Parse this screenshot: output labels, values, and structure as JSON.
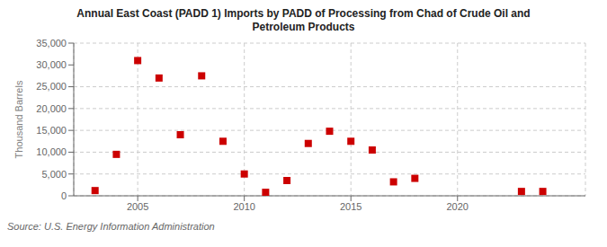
{
  "chart_data": {
    "type": "scatter",
    "title": "Annual East Coast (PADD 1) Imports by PADD of Processing from Chad of Crude Oil and\nPetroleum Products",
    "ylabel": "Thousand Barrels",
    "annotations": [
      "Source: U.S. Energy Information Administration"
    ],
    "x": [
      2003,
      2004,
      2005,
      2006,
      2007,
      2008,
      2009,
      2010,
      2011,
      2012,
      2013,
      2014,
      2015,
      2016,
      2017,
      2018,
      2023,
      2024
    ],
    "values": [
      1200,
      9500,
      31000,
      27000,
      14000,
      27500,
      12500,
      5000,
      800,
      3500,
      12000,
      14800,
      12500,
      10500,
      3200,
      4000,
      1000,
      1000
    ],
    "color": "#cc0000",
    "marker": "square",
    "xlim": [
      2002,
      2026
    ],
    "xticks": [
      2005,
      2010,
      2015,
      2020
    ],
    "ylim": [
      0,
      35000
    ],
    "yticks": [
      0,
      {
        "value": 5000,
        "label": "5,000"
      },
      {
        "value": 10000,
        "label": "10,000"
      },
      {
        "value": 15000,
        "label": "15,000"
      },
      {
        "value": 20000,
        "label": "20,000"
      },
      {
        "value": 25000,
        "label": "25,000"
      },
      {
        "value": 30000,
        "label": "30,000"
      },
      {
        "value": 35000,
        "label": "35,000"
      }
    ],
    "grid": true
  }
}
